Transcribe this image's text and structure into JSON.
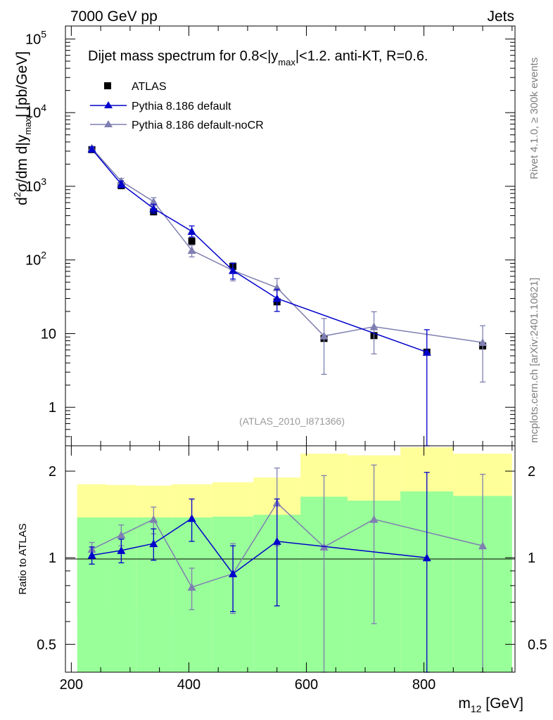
{
  "header": {
    "left": "7000 GeV pp",
    "right": "Jets"
  },
  "side_labels": {
    "rivet": "Rivet 4.1.0, ≥ 300k events",
    "mcplots": "mcplots.cern.ch [arXiv:2401.10621]"
  },
  "colors": {
    "atlas": "#000000",
    "default": "#0000cc",
    "noCR": "#7f7fb2",
    "band_inner": "#99ff99",
    "band_outer": "#ffff99"
  },
  "chart_data": [
    {
      "type": "scatter",
      "title": "Dijet mass spectrum for 0.8<|y_max|<1.2.  anti-KT, R=0.6.",
      "title_parts": {
        "main": "Dijet mass spectrum for 0.8<|y",
        "sub": "max",
        "rest": "|<1.2.  anti-KT, R=0.6."
      },
      "ylabel_parts": {
        "d2": "d",
        "sup": "2",
        "mid": "σ/dm d|y",
        "sub": "max",
        "end": "| [pb/GeV]"
      },
      "yscale": "log",
      "xlim": [
        190,
        955
      ],
      "ylim": [
        0.3,
        150000
      ],
      "x_ticks": [
        200,
        400,
        600,
        800
      ],
      "y_ticks": [
        {
          "value": 1,
          "label": "1"
        },
        {
          "value": 10,
          "label": "10"
        },
        {
          "value": 100,
          "label": "10",
          "exp": "2"
        },
        {
          "value": 1000,
          "label": "10",
          "exp": "3"
        },
        {
          "value": 10000,
          "label": "10",
          "exp": "4"
        },
        {
          "value": 100000,
          "label": "10",
          "exp": "5"
        }
      ],
      "watermark": "(ATLAS_2010_I871366)",
      "legend": [
        "ATLAS",
        "Pythia 8.186 default",
        "Pythia 8.186 default-noCR"
      ],
      "legend_position": "top-left",
      "series": [
        {
          "name": "ATLAS",
          "marker": "square",
          "x": [
            235,
            285,
            340,
            405,
            475,
            550,
            630,
            715,
            805,
            900
          ],
          "y": [
            3150,
            1020,
            450,
            180,
            82,
            27,
            8.6,
            9.4,
            5.6,
            6.8
          ],
          "yerr": [
            0,
            0,
            0,
            0,
            0,
            0,
            0,
            0,
            0,
            0
          ]
        },
        {
          "name": "Pythia 8.186 default",
          "marker": "triangle",
          "x": [
            235,
            285,
            340,
            405,
            475,
            550,
            805
          ],
          "y": [
            3200,
            1070,
            500,
            245,
            72,
            30,
            5.6
          ],
          "ylow": [
            2980,
            960,
            430,
            205,
            55,
            20,
            0.2
          ],
          "yhigh": [
            3420,
            1180,
            570,
            290,
            90,
            40,
            11.3
          ]
        },
        {
          "name": "Pythia 8.186 default-noCR",
          "marker": "triangle",
          "x": [
            235,
            285,
            340,
            405,
            475,
            550,
            630,
            715,
            900
          ],
          "y": [
            3300,
            1170,
            620,
            135,
            72,
            42,
            9.3,
            12.4,
            7.6
          ],
          "ylow": [
            3120,
            1060,
            545,
            110,
            52,
            30,
            2.8,
            5.3,
            2.2
          ],
          "yhigh": [
            3480,
            1280,
            700,
            158,
            92,
            56,
            16,
            19.8,
            12.8
          ]
        }
      ]
    },
    {
      "type": "scatter",
      "ylabel": "Ratio to ATLAS",
      "xlabel_parts": {
        "main": "m",
        "sub": "12",
        "unit": " [GeV]"
      },
      "yscale": "log",
      "xlim": [
        190,
        955
      ],
      "ylim": [
        0.4,
        2.45
      ],
      "x_ticks": [
        200,
        400,
        600,
        800
      ],
      "y_ticks": [
        {
          "value": 0.5,
          "label": "0.5"
        },
        {
          "value": 1,
          "label": "1"
        },
        {
          "value": 2,
          "label": "2"
        }
      ],
      "bands": {
        "edges": [
          210,
          260,
          310,
          370,
          440,
          510,
          590,
          670,
          760,
          850,
          950
        ],
        "inner_low": [
          0.4,
          0.4,
          0.4,
          0.4,
          0.4,
          0.4,
          0.4,
          0.4,
          0.4,
          0.4
        ],
        "inner_high": [
          1.38,
          1.38,
          1.38,
          1.38,
          1.39,
          1.41,
          1.63,
          1.58,
          1.7,
          1.64
        ],
        "outer_low": [
          0.64,
          0.65,
          0.66,
          0.65,
          0.62,
          0.57,
          0.4,
          0.4,
          0.4,
          0.4
        ],
        "outer_high": [
          1.8,
          1.79,
          1.78,
          1.8,
          1.83,
          1.9,
          2.3,
          2.27,
          2.42,
          2.3
        ]
      },
      "series": [
        {
          "name": "Pythia 8.186 default",
          "x": [
            235,
            285,
            340,
            405,
            475,
            550,
            805
          ],
          "y": [
            1.02,
            1.06,
            1.12,
            1.37,
            0.88,
            1.14,
            1.0
          ],
          "ylow": [
            0.95,
            0.96,
            0.98,
            1.14,
            0.65,
            0.68,
            0.35
          ],
          "yhigh": [
            1.09,
            1.16,
            1.26,
            1.6,
            1.1,
            1.6,
            1.98
          ]
        },
        {
          "name": "Pythia 8.186 default-noCR",
          "x": [
            235,
            285,
            340,
            405,
            475,
            550,
            630,
            715,
            900
          ],
          "y": [
            1.07,
            1.2,
            1.36,
            0.79,
            0.88,
            1.55,
            1.09,
            1.36,
            1.1
          ],
          "ylow": [
            1.01,
            1.1,
            1.21,
            0.66,
            0.64,
            1.1,
            0.35,
            0.59,
            0.35
          ],
          "yhigh": [
            1.13,
            1.3,
            1.5,
            0.92,
            1.12,
            2.05,
            1.93,
            2.1,
            1.95
          ]
        }
      ]
    }
  ]
}
